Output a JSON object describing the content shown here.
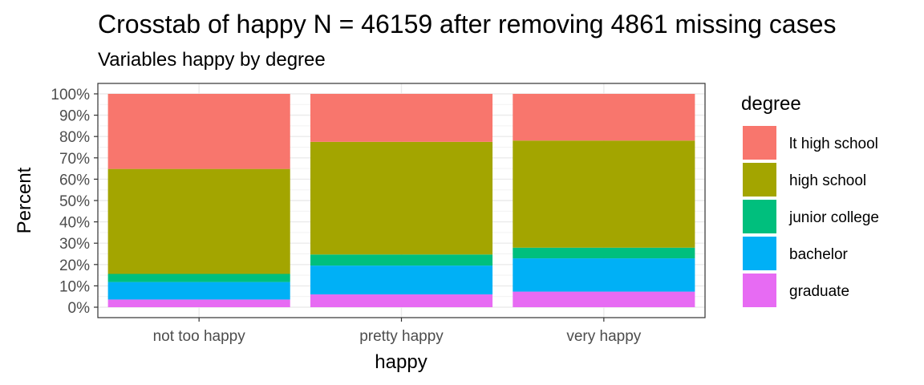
{
  "chart_data": {
    "type": "bar",
    "stacked": true,
    "percent": true,
    "title": "Crosstab of happy N = 46159 after removing 4861 missing cases",
    "subtitle": "Variables happy by degree",
    "xlabel": "happy",
    "ylabel": "Percent",
    "ylim": [
      0,
      100
    ],
    "yticks": [
      "0%",
      "10%",
      "20%",
      "30%",
      "40%",
      "50%",
      "60%",
      "70%",
      "80%",
      "90%",
      "100%"
    ],
    "categories": [
      "not too happy",
      "pretty happy",
      "very happy"
    ],
    "legend_title": "degree",
    "legend_position": "right",
    "grid": true,
    "series": [
      {
        "name": "lt high school",
        "color": "#F8766D",
        "values": [
          35.2,
          22.5,
          21.9
        ]
      },
      {
        "name": "high school",
        "color": "#A3A500",
        "values": [
          49.2,
          52.8,
          50.2
        ]
      },
      {
        "name": "junior college",
        "color": "#00BF7D",
        "values": [
          3.8,
          5.2,
          5.0
        ]
      },
      {
        "name": "bachelor",
        "color": "#00B0F6",
        "values": [
          8.2,
          13.5,
          15.6
        ]
      },
      {
        "name": "graduate",
        "color": "#E76BF3",
        "values": [
          3.6,
          6.0,
          7.3
        ]
      }
    ]
  }
}
